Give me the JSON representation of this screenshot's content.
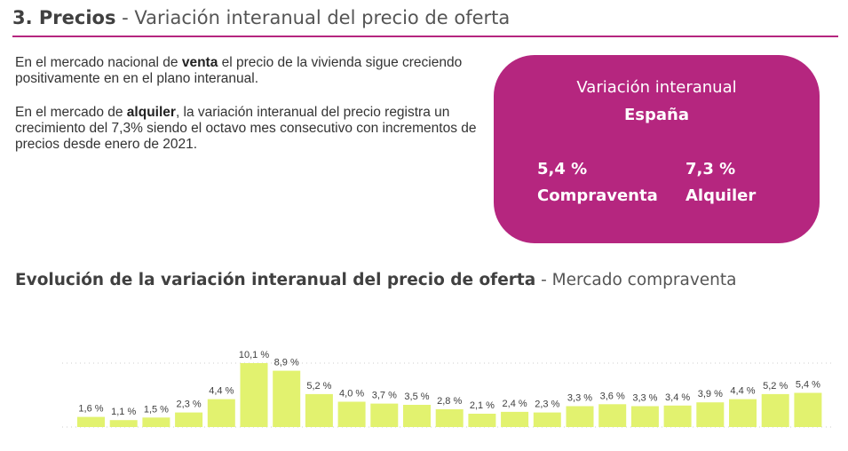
{
  "header": {
    "number_title": "3. Precios",
    "subtitle": " - Variación interanual del precio de oferta"
  },
  "intro": {
    "p1": {
      "before": "En el mercado nacional de ",
      "bold": "venta",
      "after": " el precio de la vivienda sigue creciendo positivamente en en el plano interanual."
    },
    "p2": {
      "before": "En el mercado de ",
      "bold": "alquiler",
      "after": ", la variación interanual del precio registra un crecimiento del 7,3% siendo el octavo mes consecutivo con incrementos de precios desde enero de 2021."
    }
  },
  "kpi_card": {
    "title": "Variación interanual",
    "region": "España",
    "sale": {
      "value": "5,4 %",
      "label": "Compraventa"
    },
    "rent": {
      "value": "7,3 %",
      "label": "Alquiler"
    },
    "color": "#b5267f"
  },
  "chart_title": {
    "bold": "Evolución de la variación interanual del precio de oferta",
    "light": " - Mercado compraventa"
  },
  "chart_data": {
    "type": "bar",
    "values": [
      1.6,
      1.1,
      1.5,
      2.3,
      4.4,
      10.1,
      8.9,
      5.2,
      4.0,
      3.7,
      3.5,
      2.8,
      2.1,
      2.4,
      2.3,
      3.3,
      3.6,
      3.3,
      3.4,
      3.9,
      4.4,
      5.2,
      5.4
    ],
    "labels": [
      "1,6 %",
      "1,1 %",
      "1,5 %",
      "2,3 %",
      "4,4 %",
      "10,1 %",
      "8,9 %",
      "5,2 %",
      "4,0 %",
      "3,7 %",
      "3,5 %",
      "2,8 %",
      "2,1 %",
      "2,4 %",
      "2,3 %",
      "3,3 %",
      "3,6 %",
      "3,3 %",
      "3,4 %",
      "3,9 %",
      "4,4 %",
      "5,2 %",
      "5,4 %"
    ],
    "ylim": [
      0,
      10.1
    ],
    "grid": true,
    "bar_color": "#e2f26f",
    "grid_color": "#cccccc",
    "label_color": "#404040"
  }
}
